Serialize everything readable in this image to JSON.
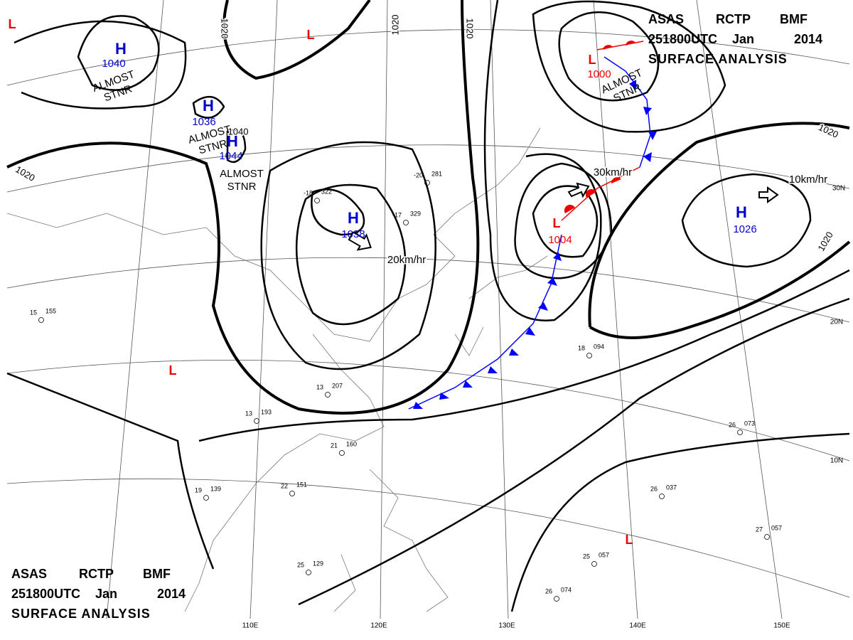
{
  "header": {
    "line1": [
      "ASAS",
      "RCTP",
      "BMF"
    ],
    "line2": [
      "251800UTC",
      "Jan",
      "2014"
    ],
    "line3": "SURFACE ANALYSIS"
  },
  "centers": [
    {
      "type": "H",
      "pressure": "1040"
    },
    {
      "type": "H",
      "pressure": "1036"
    },
    {
      "type": "H",
      "pressure": "1044"
    },
    {
      "type": "H",
      "pressure": "1038"
    },
    {
      "type": "H",
      "pressure": "1026"
    },
    {
      "type": "L",
      "pressure": "1000"
    },
    {
      "type": "L",
      "pressure": "1004"
    },
    {
      "type": "L"
    },
    {
      "type": "L"
    },
    {
      "type": "L"
    },
    {
      "type": "L"
    }
  ],
  "isobar_labels": [
    "1020",
    "1020",
    "1020",
    "1020",
    "1020",
    "1020",
    "1040"
  ],
  "notes": [
    "ALMOST STNR",
    "ALMOST STNR",
    "ALMOST STNR",
    "ALMOST STNR"
  ],
  "motion": [
    "20km/hr",
    "30km/hr",
    "10km/hr"
  ],
  "latitudes": [
    "30N",
    "20N",
    "10N"
  ],
  "longitudes": [
    "110E",
    "120E",
    "130E",
    "140E",
    "150E"
  ],
  "stations": [
    {
      "temp": "15",
      "pressure": "155"
    },
    {
      "temp": "13",
      "pressure": "207"
    },
    {
      "temp": "13",
      "pressure": "193"
    },
    {
      "temp": "21",
      "pressure": "160"
    },
    {
      "temp": "22",
      "pressure": "151"
    },
    {
      "temp": "19",
      "pressure": "139"
    },
    {
      "temp": "25",
      "pressure": "129"
    },
    {
      "temp": "26",
      "pressure": "073"
    },
    {
      "temp": "26",
      "pressure": "037"
    },
    {
      "temp": "27",
      "pressure": "057"
    },
    {
      "temp": "26",
      "pressure": "074"
    },
    {
      "temp": "25",
      "pressure": "057"
    },
    {
      "temp": "18",
      "pressure": "094"
    },
    {
      "temp": "-18",
      "pressure": "322"
    },
    {
      "temp": "-20",
      "pressure": "281"
    },
    {
      "temp": "-17",
      "pressure": "329"
    }
  ]
}
